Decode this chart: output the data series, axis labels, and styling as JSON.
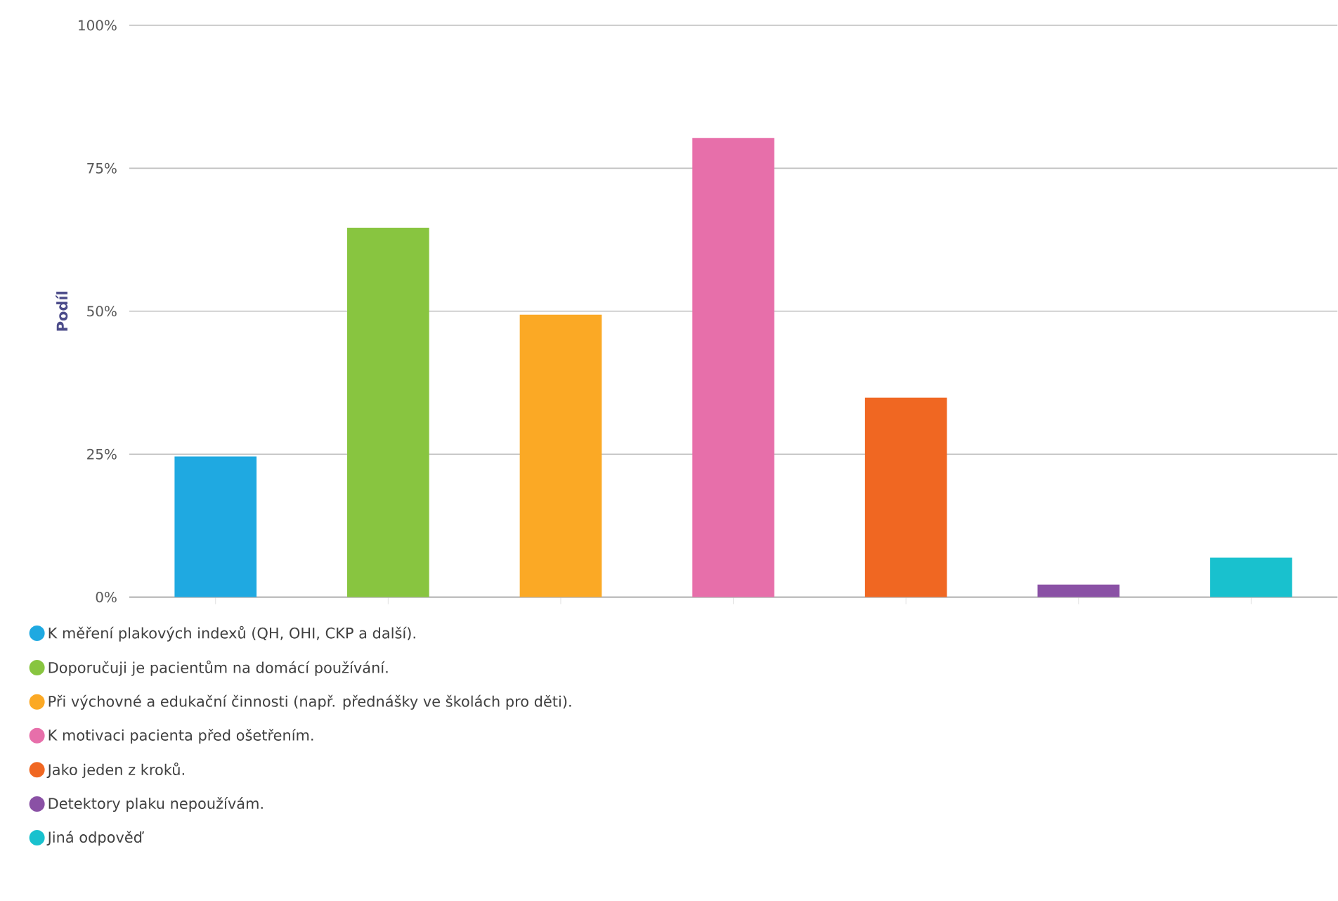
{
  "chart_data": {
    "type": "bar",
    "ylabel": "Podíl",
    "categories": [
      null,
      null,
      null,
      null,
      null,
      null,
      null
    ],
    "series": [
      {
        "name": "K měření plakových indexů (QH, OHI, CKP a další).",
        "color": "#1fa9e1",
        "values": [
          24.6,
          null,
          null,
          null,
          null,
          null,
          null
        ]
      },
      {
        "name": "Doporučuji je pacientům na domácí používání.",
        "color": "#88c540",
        "values": [
          null,
          64.6,
          null,
          null,
          null,
          null,
          null
        ]
      },
      {
        "name": "Při výchovné a edukační činnosti (např. přednášky ve školách pro děti).",
        "color": "#fba925",
        "values": [
          null,
          null,
          49.4,
          null,
          null,
          null,
          null
        ]
      },
      {
        "name": "K motivaci pacienta před ošetřením.",
        "color": "#e76faa",
        "values": [
          null,
          null,
          null,
          80.3,
          null,
          null,
          null
        ]
      },
      {
        "name": "Jako jeden z kroků.",
        "color": "#f06722",
        "values": [
          null,
          null,
          null,
          null,
          34.9,
          null,
          null
        ]
      },
      {
        "name": "Detektory plaku nepoužívám.",
        "color": "#8a51a5",
        "values": [
          null,
          null,
          null,
          null,
          null,
          2.2,
          null
        ]
      },
      {
        "name": "Jiná odpověď",
        "color": "#19c1ce",
        "values": [
          null,
          null,
          null,
          null,
          null,
          null,
          6.9
        ]
      }
    ],
    "ylim": [
      0,
      100
    ],
    "yticks": [
      {
        "value": 0,
        "label": "0%"
      },
      {
        "value": 25,
        "label": "25%"
      },
      {
        "value": 50,
        "label": "50%"
      },
      {
        "value": 75,
        "label": "75%"
      },
      {
        "value": 100,
        "label": "100%"
      }
    ],
    "grid": "y",
    "legend": "bottom",
    "tick_labels": "y"
  }
}
